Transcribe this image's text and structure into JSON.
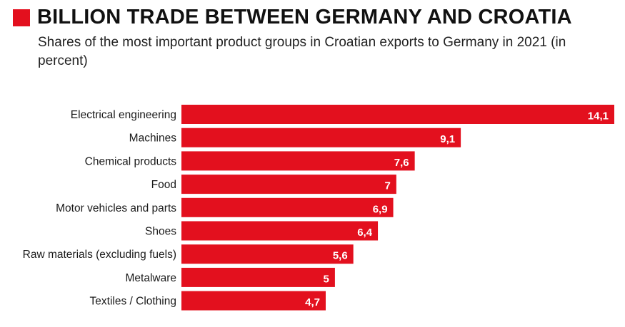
{
  "title": "BILLION TRADE BETWEEN GERMANY AND CROATIA",
  "subtitle": "Shares of the most important product groups in Croatian exports to Germany in 2021 (in percent)",
  "colors": {
    "bar": "#e3101e",
    "marker": "#e3101e",
    "title": "#111111",
    "value_text": "#ffffff"
  },
  "chart_data": {
    "type": "bar",
    "orientation": "horizontal",
    "title": "BILLION TRADE BETWEEN GERMANY AND CROATIA",
    "subtitle": "Shares of the most important product groups in Croatian exports to Germany in 2021 (in percent)",
    "xlabel": "",
    "ylabel": "",
    "xlim": [
      0,
      14.1
    ],
    "grid": false,
    "categories": [
      "Electrical engineering",
      "Machines",
      "Chemical products",
      "Food",
      "Motor vehicles and parts",
      "Shoes",
      "Raw materials (excluding fuels)",
      "Metalware",
      "Textiles / Clothing"
    ],
    "values": [
      14.1,
      9.1,
      7.6,
      7,
      6.9,
      6.4,
      5.6,
      5,
      4.7
    ],
    "value_labels": [
      "14,1",
      "9,1",
      "7,6",
      "7",
      "6,9",
      "6,4",
      "5,6",
      "5",
      "4,7"
    ]
  }
}
